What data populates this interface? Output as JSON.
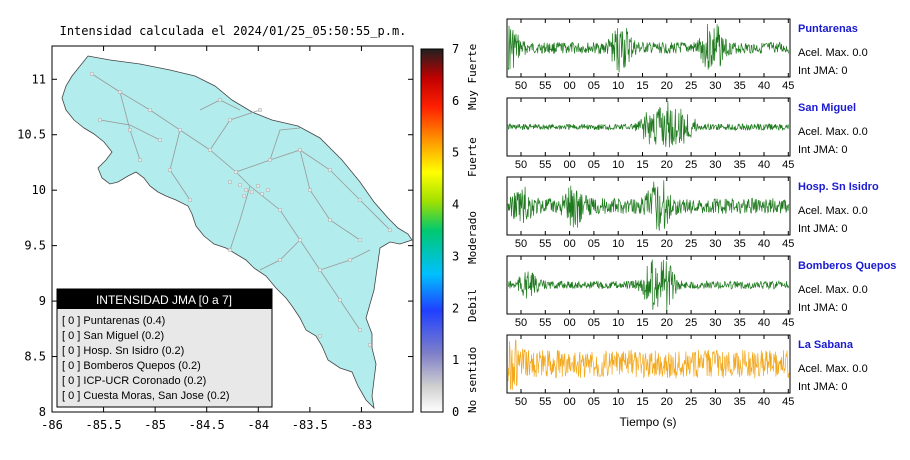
{
  "map": {
    "title": "Intensidad calculada el 2024/01/25_05:50:55_p.m.",
    "x_ticks": [
      "-86",
      "-85.5",
      "-85",
      "-84.5",
      "-84",
      "-83.5",
      "-83"
    ],
    "y_ticks": [
      "11",
      "10.5",
      "10",
      "9.5",
      "9",
      "8.5",
      "8"
    ],
    "xlim": [
      -86,
      -82.5
    ],
    "ylim": [
      8,
      11.3
    ]
  },
  "colorbar": {
    "ticks": [
      "0",
      "1",
      "2",
      "3",
      "4",
      "5",
      "6",
      "7"
    ],
    "labels": [
      "No sentido",
      "Debil",
      "Moderado",
      "Fuerte",
      "Muy Fuerte"
    ],
    "range": [
      0,
      7
    ]
  },
  "legend": {
    "title": "INTENSIDAD JMA [0 a 7]",
    "items": [
      "[ 0 ]  Puntarenas (0.4)",
      "[ 0 ]  San Miguel (0.2)",
      "[ 0 ]  Hosp. Sn Isidro (0.2)",
      "[ 0 ]  Bomberos Quepos (0.2)",
      "[ 0 ]  ICP-UCR Coronado (0.2)",
      "[ 0 ]  Cuesta Moras, San Jose (0.2)"
    ]
  },
  "chart_data": [
    {
      "type": "line",
      "title": "Puntarenas",
      "accel": "Acel. Max. 0.0",
      "int": "Int JMA: 0",
      "color": "#1f7a1f",
      "x_ticks": [
        "50",
        "55",
        "00",
        "05",
        "10",
        "15",
        "20",
        "25",
        "30",
        "35",
        "40",
        "45"
      ],
      "x_first": 50,
      "x_step": 5,
      "bursts": [
        [
          0,
          0.9
        ],
        [
          23,
          0.8
        ],
        [
          41.5,
          1.0
        ]
      ],
      "base": 0.22
    },
    {
      "type": "line",
      "title": "San Miguel",
      "accel": "Acel. Max. 0.0",
      "int": "Int JMA: 0",
      "color": "#1f7a1f",
      "x_ticks": [
        "50",
        "55",
        "00",
        "05",
        "10",
        "15",
        "20",
        "25",
        "30",
        "35",
        "40",
        "45"
      ],
      "x_first": 50,
      "x_step": 5,
      "bursts": [
        [
          32,
          1.0
        ],
        [
          29,
          0.6
        ],
        [
          36,
          0.6
        ]
      ],
      "base": 0.12
    },
    {
      "type": "line",
      "title": "Hosp. Sn Isidro",
      "accel": "Acel. Max. 0.0",
      "int": "Int JMA: 0",
      "color": "#1f7a1f",
      "x_ticks": [
        "50",
        "55",
        "00",
        "05",
        "10",
        "15",
        "20",
        "25",
        "30",
        "35",
        "40",
        "45"
      ],
      "x_first": 52,
      "x_step": 5,
      "bursts": [
        [
          30.5,
          1.0
        ],
        [
          13.5,
          0.6
        ],
        [
          3,
          0.5
        ]
      ],
      "base": 0.3
    },
    {
      "type": "line",
      "title": "Bomberos Quepos",
      "accel": "Acel. Max. 0.0",
      "int": "Int JMA: 0",
      "color": "#1f7a1f",
      "x_ticks": [
        "50",
        "55",
        "00",
        "05",
        "10",
        "15",
        "20",
        "25",
        "30",
        "35",
        "40",
        "45"
      ],
      "x_first": 52,
      "x_step": 5,
      "bursts": [
        [
          31.5,
          1.0
        ],
        [
          29,
          0.6
        ],
        [
          4,
          0.4
        ]
      ],
      "base": 0.15
    },
    {
      "type": "line",
      "title": "La Sabana",
      "accel": "Acel. Max. 0.0",
      "int": "Int JMA: 0",
      "color": "#f2a81d",
      "x_ticks": [
        "50",
        "55",
        "00",
        "05",
        "10",
        "15",
        "20",
        "25",
        "30",
        "35",
        "40",
        "45"
      ],
      "x_first": 50,
      "x_step": 5,
      "bursts": [
        [
          0,
          1.0
        ]
      ],
      "base": 0.55
    }
  ],
  "time_axis_label": "Tiempo (s)"
}
